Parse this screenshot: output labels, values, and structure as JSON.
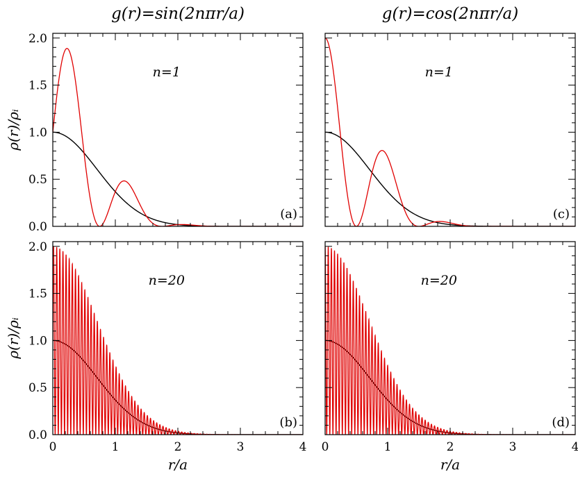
{
  "chart_data": [
    {
      "id": "a",
      "type": "line",
      "column_title": "g(r)=sin(2nπr/a)",
      "annotation": "n=1",
      "panel_label": "(a)",
      "xlabel": "",
      "ylabel": "ρ(r)/ρᵢ",
      "xlim": [
        0,
        4
      ],
      "ylim": [
        0,
        2.05
      ],
      "yticks": [
        "0.0",
        "0.5",
        "1.0",
        "1.5",
        "2.0"
      ],
      "xticks": [],
      "series": [
        {
          "color": "#000000",
          "formula": "exp(-x^2)"
        },
        {
          "color": "#e00000",
          "formula": "exp(-x^2)*(1+sin(2*pi*n*x))",
          "n": 1
        }
      ]
    },
    {
      "id": "b",
      "type": "line",
      "column_title": "",
      "annotation": "n=20",
      "panel_label": "(b)",
      "xlabel": "r/a",
      "ylabel": "ρ(r)/ρᵢ",
      "xlim": [
        0,
        4
      ],
      "ylim": [
        0,
        2.05
      ],
      "yticks": [
        "0.0",
        "0.5",
        "1.0",
        "1.5",
        "2.0"
      ],
      "xticks": [
        "0",
        "1",
        "2",
        "3",
        "4"
      ],
      "series": [
        {
          "color": "#000000",
          "formula": "exp(-x^2)"
        },
        {
          "color": "#e00000",
          "formula": "exp(-x^2)*(1+sin(2*pi*n*x))",
          "n": 20
        }
      ]
    },
    {
      "id": "c",
      "type": "line",
      "column_title": "g(r)=cos(2nπr/a)",
      "annotation": "n=1",
      "panel_label": "(c)",
      "xlabel": "",
      "ylabel": "",
      "xlim": [
        0,
        4
      ],
      "ylim": [
        0,
        2.05
      ],
      "yticks": [],
      "xticks": [],
      "series": [
        {
          "color": "#000000",
          "formula": "exp(-x^2)"
        },
        {
          "color": "#e00000",
          "formula": "exp(-x^2)*(1+cos(2*pi*n*x))",
          "n": 1
        }
      ]
    },
    {
      "id": "d",
      "type": "line",
      "column_title": "",
      "annotation": "n=20",
      "panel_label": "(d)",
      "xlabel": "r/a",
      "ylabel": "",
      "xlim": [
        0,
        4
      ],
      "ylim": [
        0,
        2.05
      ],
      "yticks": [],
      "xticks": [
        "0",
        "1",
        "2",
        "3",
        "4"
      ],
      "series": [
        {
          "color": "#000000",
          "formula": "exp(-x^2)"
        },
        {
          "color": "#e00000",
          "formula": "exp(-x^2)*(1+cos(2*pi*n*x))",
          "n": 20
        }
      ]
    }
  ]
}
